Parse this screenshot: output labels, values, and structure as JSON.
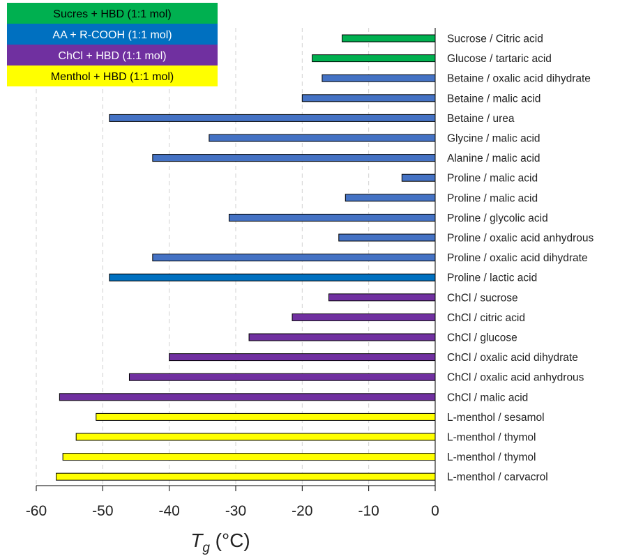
{
  "chart_data": {
    "type": "bar",
    "orientation": "horizontal",
    "xlabel_main": "T",
    "xlabel_sub": "g",
    "xlabel_unit": " (°C)",
    "xlim": [
      -60,
      0
    ],
    "xticks": [
      "-60",
      "-50",
      "-40",
      "-30",
      "-20",
      "-10",
      "0"
    ],
    "tick_values": [
      -60,
      -50,
      -40,
      -30,
      -20,
      -10,
      0
    ],
    "grid": "vertical dashed",
    "legend_position": "top-left",
    "legend": [
      {
        "label": "Sucres + HBD (1:1 mol)",
        "color": "#00b050",
        "text_color": "#000000"
      },
      {
        "label": "AA + R-COOH (1:1 mol)",
        "color": "#0070c0",
        "text_color": "#ffffff"
      },
      {
        "label": "ChCl + HBD (1:1 mol)",
        "color": "#7030a0",
        "text_color": "#ffffff"
      },
      {
        "label": "Menthol + HBD (1:1 mol)",
        "color": "#ffff00",
        "text_color": "#000000"
      }
    ],
    "categories": [
      "Sucrose / Citric acid",
      "Glucose / tartaric acid",
      "Betaine / oxalic acid dihydrate",
      "Betaine / malic acid",
      "Betaine / urea",
      "Glycine / malic acid",
      "Alanine / malic acid",
      "Proline / malic acid",
      "Proline / malic acid",
      "Proline / glycolic acid",
      "Proline / oxalic acid anhydrous",
      "Proline / oxalic acid dihydrate",
      "Proline / lactic acid",
      "ChCl / sucrose",
      "ChCl / citric acid",
      "ChCl / glucose",
      "ChCl / oxalic acid dihydrate",
      "ChCl / oxalic acid anhydrous",
      "ChCl / malic acid",
      "L-menthol / sesamol",
      "L-menthol / thymol",
      "L-menthol / thymol",
      "L-menthol / carvacrol"
    ],
    "values": [
      -14,
      -18.5,
      -17,
      -20,
      -49,
      -34,
      -42.5,
      -5,
      -13.5,
      -31,
      -14.5,
      -42.5,
      -49,
      -16,
      -21.5,
      -28,
      -40,
      -46,
      -56.5,
      -51,
      -54,
      -56,
      -57
    ],
    "colors": [
      "#00b050",
      "#00b050",
      "#4472c4",
      "#4472c4",
      "#4472c4",
      "#4472c4",
      "#4472c4",
      "#4472c4",
      "#4472c4",
      "#4472c4",
      "#4472c4",
      "#4472c4",
      "#0070c0",
      "#7030a0",
      "#7030a0",
      "#7030a0",
      "#7030a0",
      "#7030a0",
      "#7030a0",
      "#ffff00",
      "#ffff00",
      "#ffff00",
      "#ffff00"
    ]
  }
}
